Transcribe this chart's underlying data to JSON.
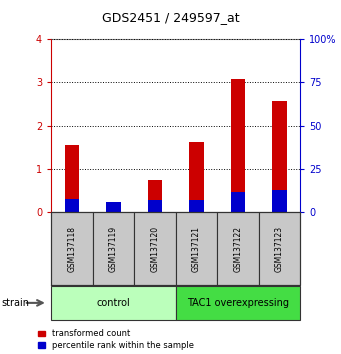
{
  "title": "GDS2451 / 249597_at",
  "samples": [
    "GSM137118",
    "GSM137119",
    "GSM137120",
    "GSM137121",
    "GSM137122",
    "GSM137123"
  ],
  "transformed_counts": [
    1.55,
    0.08,
    0.75,
    1.62,
    3.08,
    2.58
  ],
  "percentile_ranks": [
    8,
    6,
    7,
    7,
    12,
    13
  ],
  "groups": [
    {
      "label": "control",
      "samples": [
        0,
        1,
        2
      ],
      "color": "#bbffbb"
    },
    {
      "label": "TAC1 overexpressing",
      "samples": [
        3,
        4,
        5
      ],
      "color": "#44dd44"
    }
  ],
  "ylim_left": [
    0,
    4
  ],
  "ylim_right": [
    0,
    100
  ],
  "yticks_left": [
    0,
    1,
    2,
    3,
    4
  ],
  "yticks_right": [
    0,
    25,
    50,
    75,
    100
  ],
  "bar_color_red": "#cc0000",
  "bar_color_blue": "#0000cc",
  "bar_width": 0.35,
  "bg_color": "#ffffff",
  "title_fontsize": 9,
  "tick_label_color_left": "#cc0000",
  "tick_label_color_right": "#0000cc",
  "sample_box_color": "#c8c8c8",
  "strain_label": "strain",
  "legend_red": "transformed count",
  "legend_blue": "percentile rank within the sample"
}
